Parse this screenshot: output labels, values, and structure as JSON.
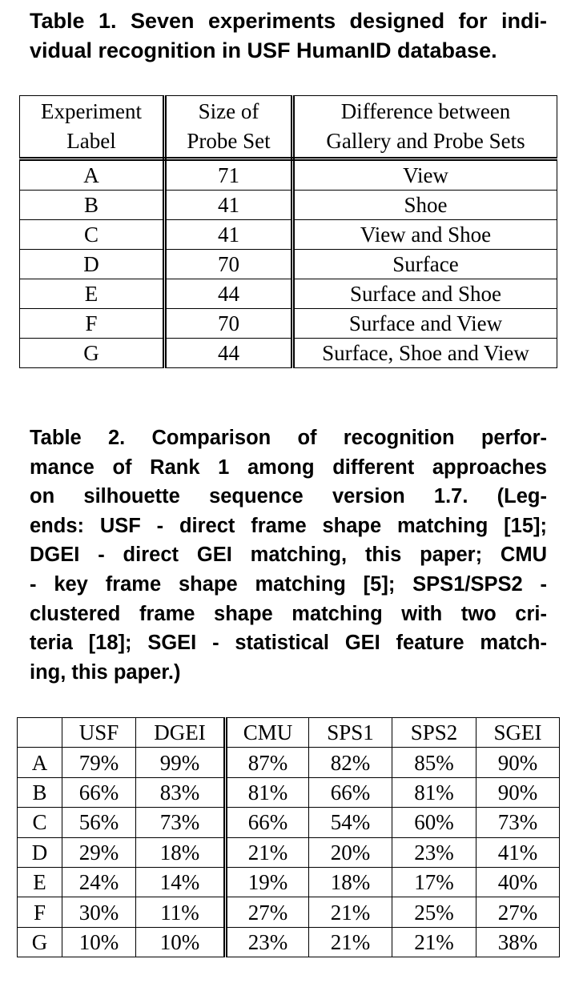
{
  "table1": {
    "caption_lines": [
      "Table 1. Seven experiments designed for indi-",
      "vidual recognition in USF HumanID database."
    ],
    "headers": [
      [
        "Experiment",
        "Label"
      ],
      [
        "Size of",
        "Probe Set"
      ],
      [
        "Difference between",
        "Gallery and Probe Sets"
      ]
    ],
    "rows": [
      [
        "A",
        "71",
        "View"
      ],
      [
        "B",
        "41",
        "Shoe"
      ],
      [
        "C",
        "41",
        "View and Shoe"
      ],
      [
        "D",
        "70",
        "Surface"
      ],
      [
        "E",
        "44",
        "Surface and Shoe"
      ],
      [
        "F",
        "70",
        "Surface and View"
      ],
      [
        "G",
        "44",
        "Surface, Shoe and View"
      ]
    ]
  },
  "table2": {
    "caption_lines": [
      "Table 2. Comparison of recognition perfor-",
      "mance of Rank 1 among different approaches",
      "on silhouette sequence version 1.7.  (Leg-",
      "ends: USF - direct frame shape matching [15];",
      "DGEI - direct GEI matching, this paper; CMU",
      "- key frame shape matching [5]; SPS1/SPS2 -",
      "clustered frame shape matching with two cri-",
      "teria [18]; SGEI - statistical GEI feature match-",
      "ing, this paper.)"
    ],
    "headers": [
      "",
      "USF",
      "DGEI",
      "CMU",
      "SPS1",
      "SPS2",
      "SGEI"
    ],
    "rows": [
      [
        "A",
        "79%",
        "99%",
        "87%",
        "82%",
        "85%",
        "90%"
      ],
      [
        "B",
        "66%",
        "83%",
        "81%",
        "66%",
        "81%",
        "90%"
      ],
      [
        "C",
        "56%",
        "73%",
        "66%",
        "54%",
        "60%",
        "73%"
      ],
      [
        "D",
        "29%",
        "18%",
        "21%",
        "20%",
        "23%",
        "41%"
      ],
      [
        "E",
        "24%",
        "14%",
        "19%",
        "18%",
        "17%",
        "40%"
      ],
      [
        "F",
        "30%",
        "11%",
        "27%",
        "21%",
        "25%",
        "27%"
      ],
      [
        "G",
        "10%",
        "10%",
        "23%",
        "21%",
        "21%",
        "38%"
      ]
    ]
  }
}
